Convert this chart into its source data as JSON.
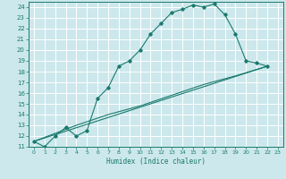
{
  "xlabel": "Humidex (Indice chaleur)",
  "bg_color": "#cce8ec",
  "grid_color": "#ffffff",
  "line_color": "#1a7a6e",
  "xlim": [
    -0.5,
    23.5
  ],
  "ylim": [
    11,
    24.5
  ],
  "xticks": [
    0,
    1,
    2,
    3,
    4,
    5,
    6,
    7,
    8,
    9,
    10,
    11,
    12,
    13,
    14,
    15,
    16,
    17,
    18,
    19,
    20,
    21,
    22,
    23
  ],
  "yticks": [
    11,
    12,
    13,
    14,
    15,
    16,
    17,
    18,
    19,
    20,
    21,
    22,
    23,
    24
  ],
  "series1": [
    [
      0,
      11.5
    ],
    [
      1,
      11.0
    ],
    [
      2,
      12.0
    ],
    [
      3,
      12.8
    ],
    [
      4,
      12.0
    ],
    [
      5,
      12.5
    ],
    [
      6,
      15.5
    ],
    [
      7,
      16.5
    ],
    [
      8,
      18.5
    ],
    [
      9,
      19.0
    ],
    [
      10,
      20.0
    ],
    [
      11,
      21.5
    ],
    [
      12,
      22.5
    ],
    [
      13,
      23.5
    ],
    [
      14,
      23.8
    ],
    [
      15,
      24.2
    ],
    [
      16,
      24.0
    ],
    [
      17,
      24.3
    ],
    [
      18,
      23.3
    ],
    [
      19,
      21.5
    ],
    [
      20,
      19.0
    ],
    [
      21,
      18.8
    ],
    [
      22,
      18.5
    ]
  ],
  "series2": [
    [
      0,
      11.5
    ],
    [
      22,
      18.5
    ]
  ],
  "series3": [
    [
      0,
      11.5
    ],
    [
      4,
      13.0
    ],
    [
      7,
      14.0
    ],
    [
      10,
      14.8
    ],
    [
      13,
      15.8
    ],
    [
      16,
      16.8
    ],
    [
      19,
      17.6
    ],
    [
      22,
      18.5
    ]
  ]
}
